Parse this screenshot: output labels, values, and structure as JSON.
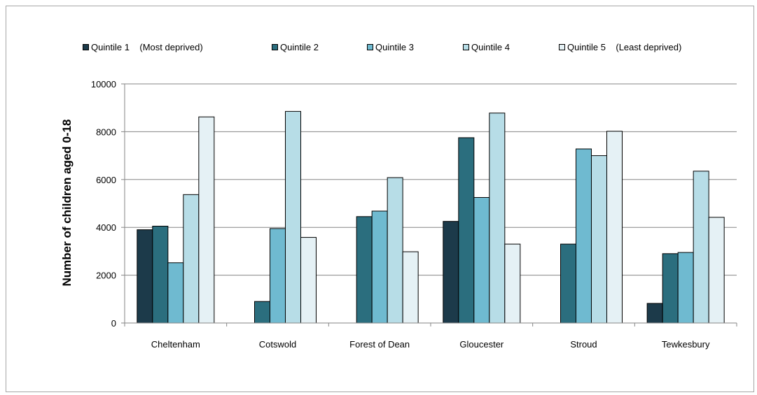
{
  "chart_data": {
    "type": "bar",
    "title": "",
    "xlabel": "",
    "ylabel": "Number of children aged 0-18",
    "ylim": [
      0,
      10000
    ],
    "yticks": [
      0,
      2000,
      4000,
      6000,
      8000,
      10000
    ],
    "grid": true,
    "legend_position": "top",
    "categories": [
      "Cheltenham",
      "Cotswold",
      "Forest of Dean",
      "Gloucester",
      "Stroud",
      "Tewkesbury"
    ],
    "series": [
      {
        "name": "Quintile 1    (Most deprived)",
        "color": "#1c3a4a",
        "values": [
          3900,
          0,
          0,
          4250,
          0,
          820
        ]
      },
      {
        "name": "Quintile 2",
        "color": "#2b6e7e",
        "values": [
          4050,
          900,
          4450,
          7750,
          3300,
          2900
        ]
      },
      {
        "name": "Quintile 3",
        "color": "#6fbad0",
        "values": [
          2520,
          3950,
          4680,
          5250,
          7280,
          2950
        ]
      },
      {
        "name": "Quintile 4",
        "color": "#b7dde7",
        "values": [
          5370,
          8850,
          6080,
          8780,
          7000,
          6350
        ]
      },
      {
        "name": "Quintile 5    (Least deprived)",
        "color": "#e5f1f5",
        "values": [
          8620,
          3580,
          2980,
          3300,
          8020,
          4420
        ]
      }
    ]
  }
}
